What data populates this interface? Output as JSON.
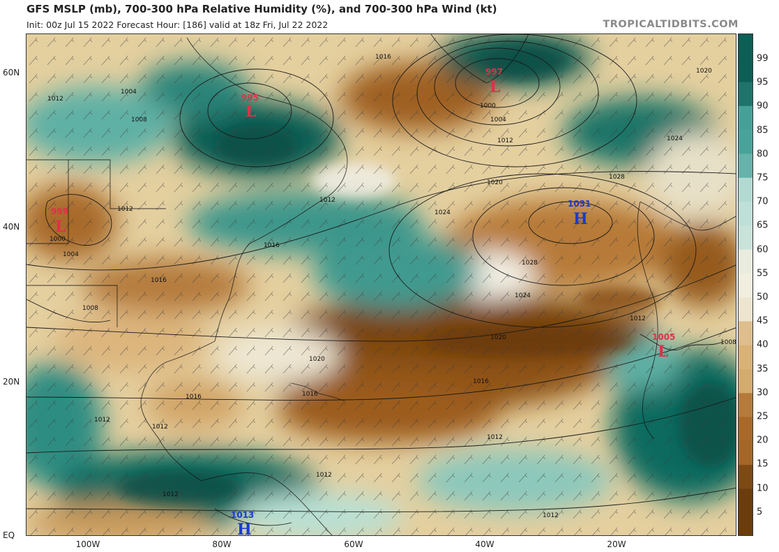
{
  "header": {
    "title": "GFS MSLP (mb), 700-300 hPa Relative Humidity (%), and 700-300 hPa Wind (kt)",
    "subtitle": "Init: 00z Jul 15 2022   Forecast Hour: [186]   valid at 18z Fri, Jul 22 2022",
    "brand": "TROPICALTIDBITS.COM"
  },
  "axes": {
    "lat_labels": [
      "60N",
      "40N",
      "20N",
      "EQ"
    ],
    "lon_labels": [
      "100W",
      "80W",
      "60W",
      "40W",
      "20W"
    ]
  },
  "colorbar": {
    "ticks": [
      "99",
      "95",
      "90",
      "85",
      "80",
      "75",
      "70",
      "65",
      "60",
      "55",
      "50",
      "45",
      "40",
      "35",
      "30",
      "25",
      "20",
      "15",
      "10",
      "5"
    ],
    "colors": {
      "dry_dark": "#6b3d0c",
      "dry_mid": "#a8692a",
      "dry_light": "#d9b277",
      "neutral": "#f2eee0",
      "moist_light": "#bfe0d8",
      "moist_mid": "#4aa39a",
      "moist_dark": "#0d5e55"
    }
  },
  "pressure_centers": [
    {
      "value": "995",
      "type": "L",
      "color": "#e0304a"
    },
    {
      "value": "997",
      "type": "L",
      "color": "#e0304a"
    },
    {
      "value": "999",
      "type": "L",
      "color": "#e0304a"
    },
    {
      "value": "1005",
      "type": "L",
      "color": "#e0304a"
    },
    {
      "value": "1031",
      "type": "H",
      "color": "#1a3ad0"
    },
    {
      "value": "1013",
      "type": "H",
      "color": "#1a3ad0"
    }
  ],
  "isobar_labels": [
    "1012",
    "1008",
    "1004",
    "1000",
    "1016",
    "1020",
    "1024",
    "1028"
  ]
}
